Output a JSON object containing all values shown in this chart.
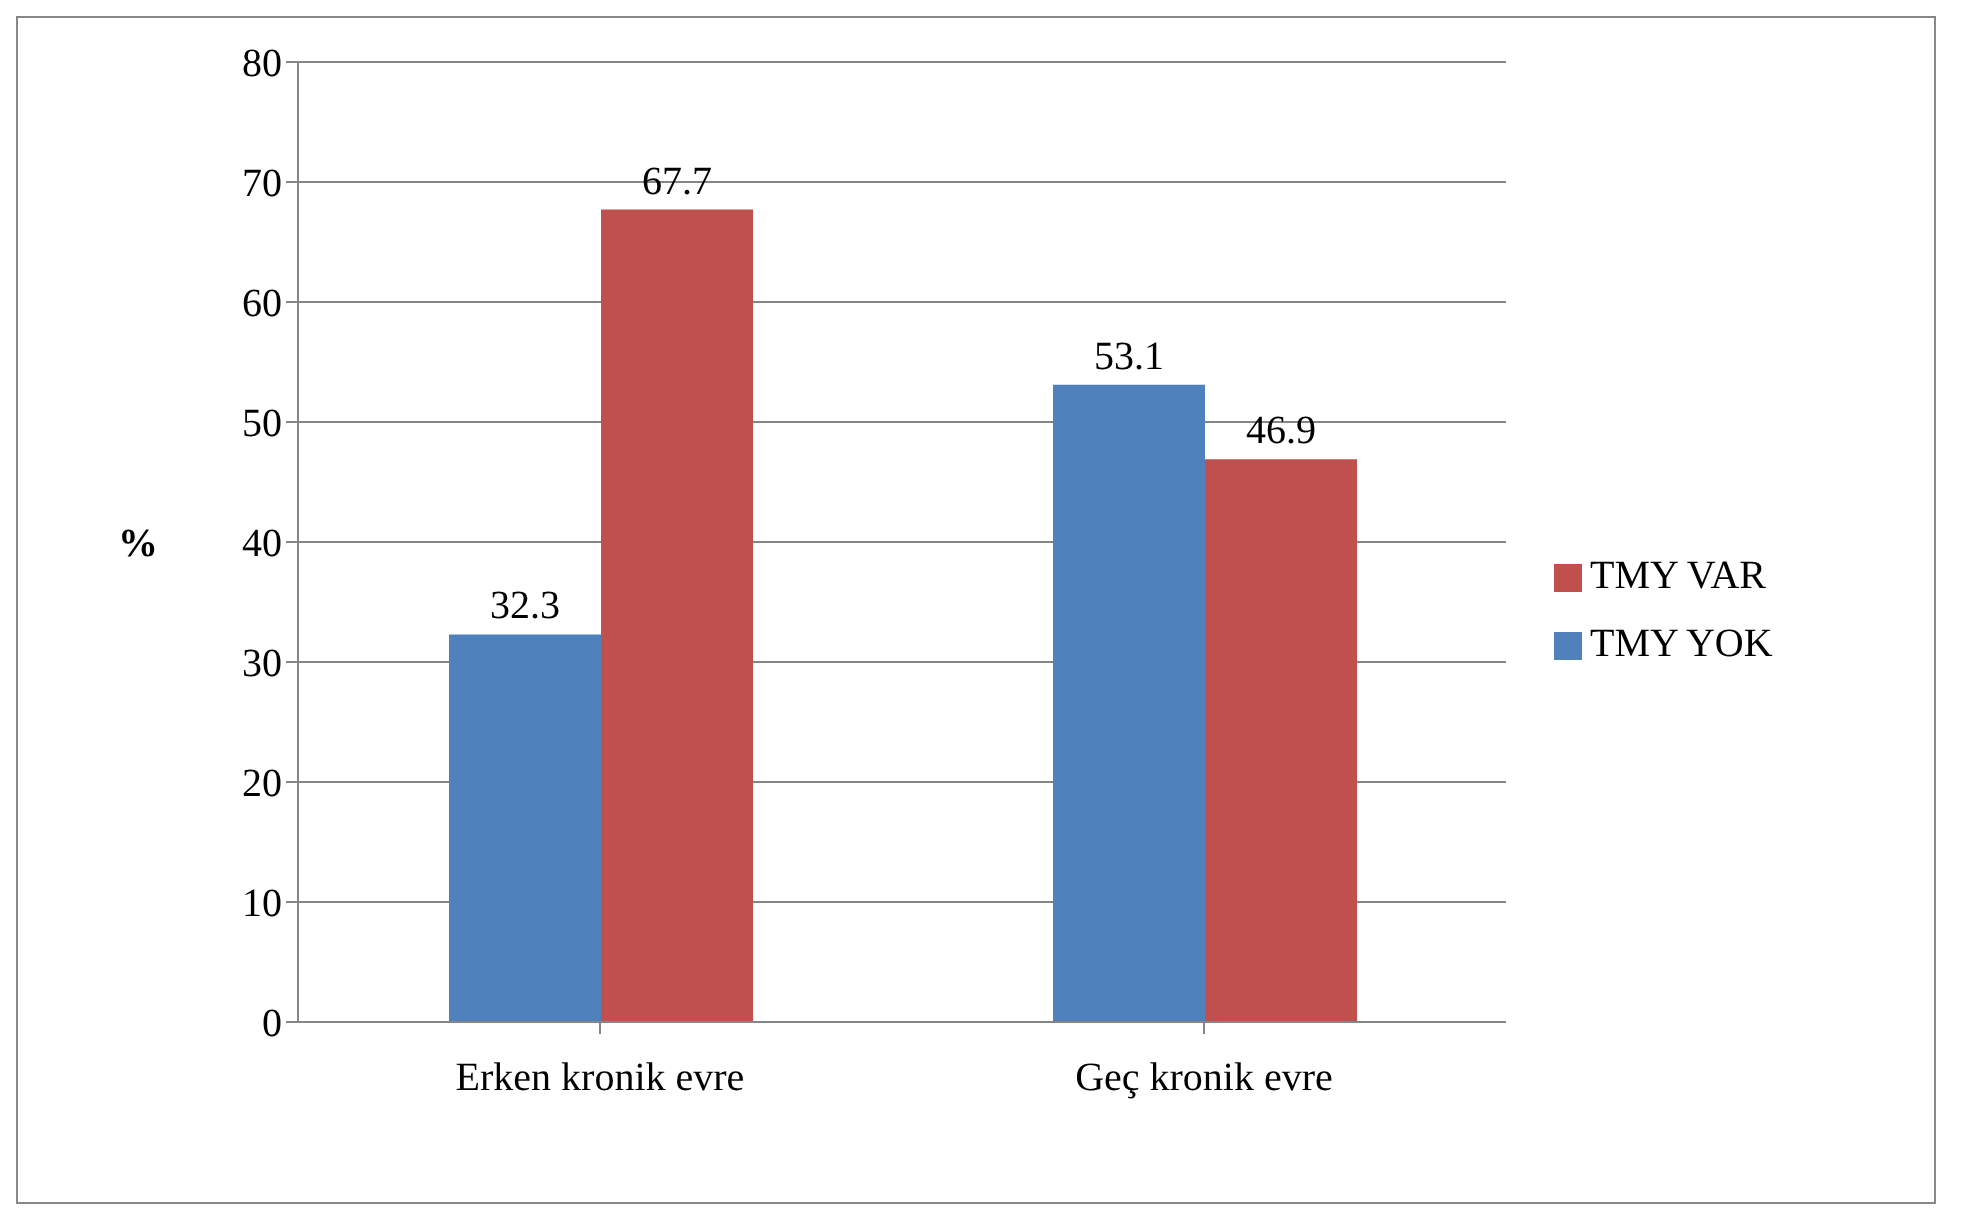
{
  "chart_data": {
    "type": "bar",
    "ylabel": "%",
    "categories": [
      "Erken kronik evre",
      "Geç kronik evre"
    ],
    "series": [
      {
        "name": "TMY YOK",
        "color": "#4f81bd",
        "values": [
          32.3,
          53.1
        ]
      },
      {
        "name": "TMY VAR",
        "color": "#c0504d",
        "values": [
          67.7,
          46.9
        ]
      }
    ],
    "ylim": [
      0,
      80
    ],
    "yticks": [
      0,
      10,
      20,
      30,
      40,
      50,
      60,
      70,
      80
    ],
    "grid": "y",
    "legend": "right",
    "data_labels": true
  }
}
